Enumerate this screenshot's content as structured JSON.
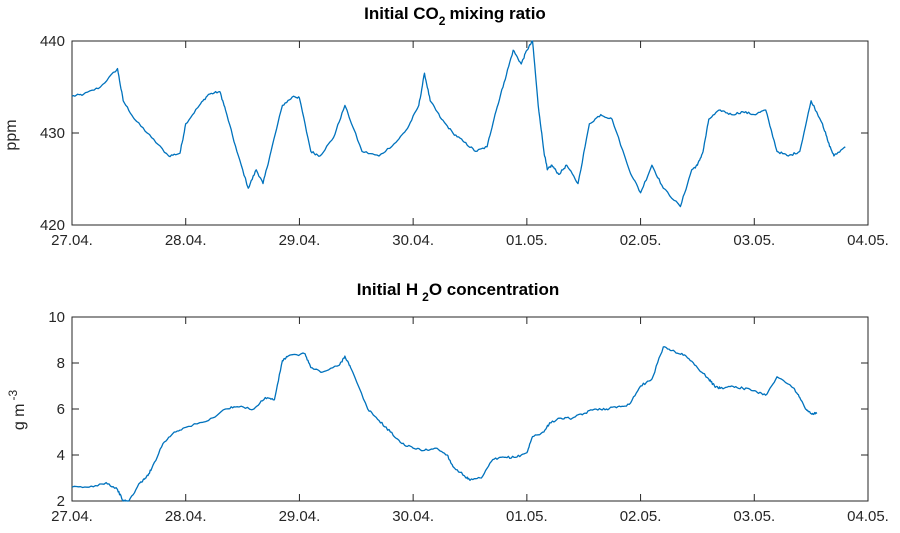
{
  "chart_data": [
    {
      "type": "line",
      "title": "Initial CO",
      "title_sub": "2",
      "title_end": "mixing ratio",
      "ylabel": "ppm",
      "xlabel": "",
      "x_ticks": [
        "27.04.",
        "28.04.",
        "29.04.",
        "30.04.",
        "01.05.",
        "02.05.",
        "03.05.",
        "04.05."
      ],
      "xlim": [
        0,
        7
      ],
      "ylim": [
        420,
        440
      ],
      "y_ticks": [
        420,
        430,
        440
      ],
      "grid": false,
      "line_color": "#0072BD",
      "series": [
        {
          "x": [
            0.0,
            0.1,
            0.25,
            0.4,
            0.45,
            0.55,
            0.7,
            0.85,
            0.95,
            1.0,
            1.12,
            1.2,
            1.3,
            1.35,
            1.45,
            1.55,
            1.62,
            1.68,
            1.75,
            1.85,
            1.95,
            2.0,
            2.1,
            2.18,
            2.3,
            2.4,
            2.55,
            2.7,
            2.85,
            2.95,
            3.05,
            3.1,
            3.15,
            3.25,
            3.35,
            3.45,
            3.55,
            3.65,
            3.72,
            3.8,
            3.88,
            3.95,
            4.0,
            4.05,
            4.1,
            4.15,
            4.18,
            4.22,
            4.28,
            4.35,
            4.45,
            4.55,
            4.65,
            4.75,
            4.9,
            5.0,
            5.1,
            5.2,
            5.35,
            5.45,
            5.5,
            5.55,
            5.6,
            5.7,
            5.8,
            5.9,
            6.0,
            6.1,
            6.2,
            6.3,
            6.4,
            6.5,
            6.6,
            6.65,
            6.7,
            6.8
          ],
          "values": [
            434.0,
            434.2,
            435.0,
            437.0,
            433.5,
            431.5,
            429.5,
            427.5,
            427.8,
            431.0,
            433.0,
            434.2,
            434.5,
            432.5,
            428.0,
            424.0,
            426.0,
            424.5,
            428.0,
            433.0,
            434.0,
            433.8,
            428.0,
            427.5,
            429.5,
            433.0,
            428.0,
            427.5,
            429.0,
            430.5,
            433.0,
            436.5,
            433.5,
            431.5,
            430.0,
            429.0,
            428.0,
            428.5,
            432.0,
            435.5,
            439.0,
            437.5,
            439.0,
            440.0,
            433.0,
            428.0,
            426.0,
            426.5,
            425.5,
            426.5,
            424.5,
            431.0,
            432.0,
            431.5,
            426.0,
            423.5,
            426.5,
            424.0,
            422.0,
            426.0,
            426.5,
            428.0,
            431.5,
            432.5,
            432.0,
            432.3,
            432.0,
            432.5,
            428.0,
            427.5,
            428.0,
            433.5,
            431.0,
            429.0,
            427.5,
            428.5
          ]
        }
      ]
    },
    {
      "type": "line",
      "title": "Initial H",
      "title_sub": "2",
      "title_end": "O concentration",
      "ylabel": "g m",
      "ylabel_sup": "-3",
      "xlabel": "",
      "x_ticks": [
        "27.04.",
        "28.04.",
        "29.04.",
        "30.04.",
        "01.05.",
        "02.05.",
        "03.05.",
        "04.05."
      ],
      "xlim": [
        0,
        7
      ],
      "ylim": [
        2,
        10
      ],
      "y_ticks": [
        2,
        4,
        6,
        8,
        10
      ],
      "grid": false,
      "line_color": "#0072BD",
      "series": [
        {
          "x": [
            0.0,
            0.15,
            0.3,
            0.4,
            0.45,
            0.5,
            0.6,
            0.65,
            0.7,
            0.8,
            0.9,
            1.0,
            1.2,
            1.35,
            1.45,
            1.6,
            1.7,
            1.78,
            1.85,
            1.9,
            2.05,
            2.1,
            2.2,
            2.35,
            2.4,
            2.45,
            2.6,
            2.7,
            2.8,
            2.9,
            3.0,
            3.1,
            3.2,
            3.3,
            3.35,
            3.45,
            3.5,
            3.6,
            3.7,
            3.8,
            3.9,
            4.0,
            4.05,
            4.15,
            4.2,
            4.3,
            4.4,
            4.5,
            4.6,
            4.7,
            4.8,
            4.9,
            5.0,
            5.1,
            5.2,
            5.3,
            5.4,
            5.5,
            5.6,
            5.65,
            5.7,
            5.8,
            5.9,
            6.0,
            6.1,
            6.2,
            6.35,
            6.4,
            6.45,
            6.5,
            6.55
          ],
          "values": [
            2.6,
            2.6,
            2.8,
            2.5,
            2.0,
            2.0,
            2.8,
            3.0,
            3.4,
            4.5,
            5.0,
            5.2,
            5.5,
            6.0,
            6.1,
            6.0,
            6.5,
            6.4,
            8.1,
            8.3,
            8.4,
            7.8,
            7.6,
            7.9,
            8.3,
            7.8,
            6.0,
            5.5,
            5.0,
            4.5,
            4.3,
            4.2,
            4.3,
            4.0,
            3.5,
            3.1,
            2.9,
            3.0,
            3.8,
            3.9,
            3.9,
            4.1,
            4.8,
            5.0,
            5.4,
            5.6,
            5.6,
            5.8,
            6.0,
            6.0,
            6.1,
            6.2,
            7.0,
            7.3,
            8.7,
            8.5,
            8.3,
            7.8,
            7.3,
            7.0,
            6.9,
            7.0,
            6.9,
            6.8,
            6.6,
            7.4,
            6.9,
            6.5,
            6.0,
            5.8,
            5.8
          ]
        }
      ]
    }
  ]
}
